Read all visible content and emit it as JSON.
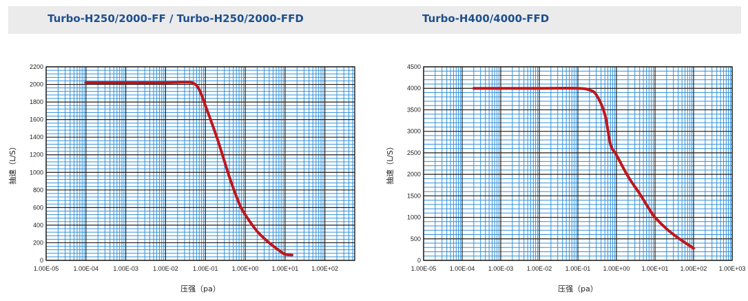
{
  "header": {
    "left_title": "Turbo-H250/2000-FF / Turbo-H250/2000-FFD",
    "right_title": "Turbo-H400/4000-FFD"
  },
  "colors": {
    "header_bg": "#ebebeb",
    "title_text": "#1e4f8e",
    "grid_minor": "#2f8fd8",
    "grid_major": "#1a1a1a",
    "curve": "#c0161c"
  },
  "chart_data": [
    {
      "type": "line",
      "title": "Turbo-H250/2000-FF / Turbo-H250/2000-FFD",
      "xlabel": "压强（pa）",
      "ylabel": "抽速（L/S）",
      "x_scale": "log",
      "xlim": [
        1e-05,
        1000
      ],
      "ylim": [
        0,
        2200
      ],
      "x_ticks": [
        "1.00E-05",
        "1.00E-04",
        "1.00E-03",
        "1.00E-02",
        "1.00E-01",
        "1.00E+00",
        "1.00E+01",
        "1.00E+02"
      ],
      "y_ticks": [
        "0",
        "200",
        "400",
        "600",
        "800",
        "1000",
        "1200",
        "1400",
        "1600",
        "1800",
        "2000",
        "2200"
      ],
      "grid": true,
      "series": [
        {
          "x": [
            0.0001,
            0.001,
            0.01,
            0.03,
            0.05,
            0.07,
            0.1,
            0.2,
            0.4,
            0.7,
            1.0,
            2.0,
            4.0,
            7.0,
            10.0,
            15.0
          ],
          "y": [
            2020,
            2020,
            2020,
            2025,
            2015,
            1940,
            1760,
            1380,
            950,
            650,
            520,
            330,
            200,
            115,
            70,
            60
          ]
        }
      ]
    },
    {
      "type": "line",
      "title": "Turbo-H400/4000-FFD",
      "xlabel": "压强（pa）",
      "ylabel": "抽速（L/S）",
      "x_scale": "log",
      "xlim": [
        1e-05,
        1000
      ],
      "ylim": [
        0,
        4500
      ],
      "x_ticks": [
        "1.00E-05",
        "1.00E-04",
        "1.00E-03",
        "1.00E-02",
        "1.00E-01",
        "1.00E+00",
        "1.00E+01",
        "1.00E+02",
        "1.00E+03"
      ],
      "y_ticks": [
        "0",
        "500",
        "1000",
        "1500",
        "2000",
        "2500",
        "3000",
        "3500",
        "4000",
        "4500"
      ],
      "grid": true,
      "series": [
        {
          "x": [
            0.0002,
            0.001,
            0.01,
            0.1,
            0.2,
            0.3,
            0.5,
            0.7,
            1.0,
            2.0,
            4.0,
            7.0,
            10.0,
            20.0,
            40.0,
            100.0
          ],
          "y": [
            4000,
            4000,
            4000,
            4000,
            3960,
            3850,
            3400,
            2700,
            2450,
            1950,
            1550,
            1200,
            1000,
            730,
            520,
            280
          ]
        }
      ]
    }
  ]
}
